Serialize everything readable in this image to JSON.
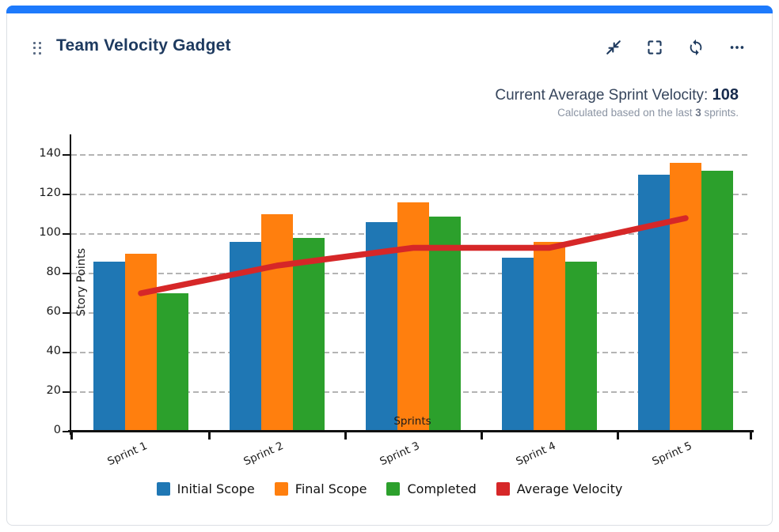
{
  "gadget": {
    "title": "Team Velocity Gadget",
    "accent_color": "#1d7afc",
    "toolbar_icons": [
      "collapse-icon",
      "fullscreen-icon",
      "refresh-icon",
      "more-options-icon"
    ]
  },
  "stats": {
    "label": "Current Average Sprint Velocity: ",
    "value": "108",
    "subtitle_prefix": "Calculated based on the last ",
    "subtitle_bold": "3",
    "subtitle_suffix": " sprints."
  },
  "chart_data": {
    "type": "bar",
    "categories": [
      "Sprint 1",
      "Sprint 2",
      "Sprint 3",
      "Sprint 4",
      "Sprint 5"
    ],
    "series": [
      {
        "name": "Initial Scope",
        "type": "bar",
        "color": "#1f77b4",
        "values": [
          86,
          96,
          106,
          88,
          130
        ]
      },
      {
        "name": "Final Scope",
        "type": "bar",
        "color": "#ff7f0e",
        "values": [
          90,
          110,
          116,
          96,
          136
        ]
      },
      {
        "name": "Completed",
        "type": "bar",
        "color": "#2ca02c",
        "values": [
          70,
          98,
          109,
          86,
          132
        ]
      },
      {
        "name": "Average Velocity",
        "type": "line",
        "color": "#d62728",
        "values": [
          70,
          84,
          93,
          93,
          108
        ]
      }
    ],
    "xlabel": "Sprints",
    "ylabel": "Story Points",
    "ylim": [
      0,
      150
    ],
    "yticks": [
      0,
      20,
      40,
      60,
      80,
      100,
      120,
      140
    ],
    "grid": "horizontal-dashed",
    "legend_position": "bottom"
  }
}
